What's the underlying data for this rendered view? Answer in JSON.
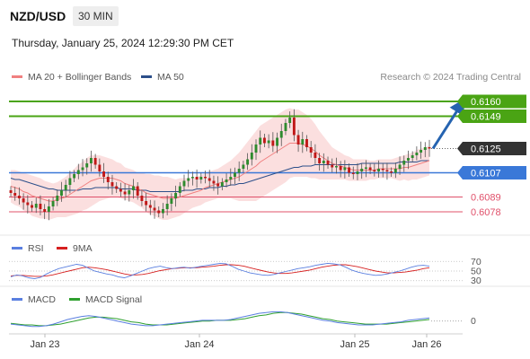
{
  "header": {
    "pair": "NZD/USD",
    "timeframe": "30 MIN",
    "datetime": "Thursday, January 25, 2024 12:29:30 PM CET"
  },
  "legend": {
    "ma20_bb": "MA 20 + Bollinger Bands",
    "ma50": "MA 50",
    "credit": "Research © 2024 Trading Central",
    "rsi": "RSI",
    "ma9": "9MA",
    "macd": "MACD",
    "macd_signal": "MACD Signal"
  },
  "colors": {
    "ma20": "#f08080",
    "ma50": "#2c4f8a",
    "green": "#4aa414",
    "blue": "#3a78d8",
    "red": "#e0506a",
    "current": "#333333",
    "rsi": "#5a7fe0",
    "rsi9": "#d62020",
    "macd": "#5a7fe0",
    "macd_signal": "#2fa02f"
  },
  "chart_data": [
    {
      "type": "candlestick",
      "title": "NZD/USD",
      "ylim": [
        0.6062,
        0.6172
      ],
      "x_labels": [
        "Jan 23",
        "Jan 24",
        "Jan 25",
        "Jan 26"
      ],
      "levels": [
        {
          "label": "0.6160",
          "value": 0.616,
          "style": "resistance"
        },
        {
          "label": "0.6149",
          "value": 0.6149,
          "style": "resistance"
        },
        {
          "label": "0.6125",
          "value": 0.6125,
          "style": "current"
        },
        {
          "label": "0.6107",
          "value": 0.6107,
          "style": "pivot"
        },
        {
          "label": "0.6089",
          "value": 0.6089,
          "style": "support"
        },
        {
          "label": "0.6078",
          "value": 0.6078,
          "style": "support"
        }
      ],
      "closes": [
        0.6092,
        0.609,
        0.6088,
        0.6085,
        0.6083,
        0.6081,
        0.6084,
        0.608,
        0.6078,
        0.6082,
        0.6086,
        0.609,
        0.6094,
        0.6098,
        0.6103,
        0.6106,
        0.6109,
        0.6111,
        0.6114,
        0.6118,
        0.6113,
        0.6108,
        0.6104,
        0.61,
        0.6097,
        0.6095,
        0.6093,
        0.6091,
        0.6094,
        0.6097,
        0.609,
        0.6086,
        0.6083,
        0.6081,
        0.6079,
        0.6077,
        0.608,
        0.6084,
        0.6088,
        0.6092,
        0.6097,
        0.6101,
        0.6103,
        0.6104,
        0.6102,
        0.6104,
        0.6103,
        0.6101,
        0.6099,
        0.6097,
        0.61,
        0.6102,
        0.6104,
        0.6107,
        0.611,
        0.6113,
        0.6117,
        0.6122,
        0.6128,
        0.6133,
        0.6129,
        0.6131,
        0.6127,
        0.6133,
        0.6138,
        0.6144,
        0.6148,
        0.6135,
        0.6128,
        0.6132,
        0.6126,
        0.6122,
        0.6118,
        0.6114,
        0.6116,
        0.6113,
        0.6111,
        0.6112,
        0.6109,
        0.6111,
        0.6107,
        0.6106,
        0.6108,
        0.611,
        0.6111,
        0.6109,
        0.6108,
        0.611,
        0.6109,
        0.6108,
        0.6107,
        0.611,
        0.6113,
        0.6116,
        0.6118,
        0.612,
        0.6122,
        0.6124,
        0.6126,
        0.6125
      ],
      "ma20": [
        0.6097,
        0.6096,
        0.6095,
        0.6093,
        0.6092,
        0.609,
        0.6089,
        0.6088,
        0.6087,
        0.6086,
        0.6086,
        0.6087,
        0.6088,
        0.6089,
        0.6091,
        0.6093,
        0.6095,
        0.6097,
        0.6099,
        0.6101,
        0.6102,
        0.6103,
        0.6103,
        0.6103,
        0.6103,
        0.6102,
        0.6101,
        0.6099,
        0.6098,
        0.6097,
        0.6095,
        0.6094,
        0.6092,
        0.6091,
        0.609,
        0.6089,
        0.6088,
        0.6088,
        0.6088,
        0.6088,
        0.6089,
        0.609,
        0.6091,
        0.6092,
        0.6093,
        0.6094,
        0.6096,
        0.6097,
        0.6098,
        0.6099,
        0.61,
        0.6101,
        0.6102,
        0.6103,
        0.6104,
        0.6106,
        0.6108,
        0.611,
        0.6112,
        0.6115,
        0.6117,
        0.6119,
        0.6121,
        0.6123,
        0.6125,
        0.6127,
        0.6129,
        0.6129,
        0.6129,
        0.6128,
        0.6127,
        0.6125,
        0.6123,
        0.612,
        0.6118,
        0.6116,
        0.6114,
        0.6113,
        0.6112,
        0.6111,
        0.611,
        0.6109,
        0.6109,
        0.6109,
        0.6109,
        0.6109,
        0.6109,
        0.611,
        0.611,
        0.611,
        0.611,
        0.611,
        0.611,
        0.6111,
        0.6111,
        0.6112,
        0.6113,
        0.6114,
        0.6115,
        0.6116
      ],
      "ma50": [
        0.6103,
        0.6102,
        0.6102,
        0.6101,
        0.61,
        0.6099,
        0.6098,
        0.6097,
        0.6096,
        0.6095,
        0.6095,
        0.6094,
        0.6094,
        0.6094,
        0.6094,
        0.6094,
        0.6094,
        0.6095,
        0.6095,
        0.6095,
        0.6096,
        0.6096,
        0.6096,
        0.6096,
        0.6096,
        0.6096,
        0.6095,
        0.6095,
        0.6095,
        0.6095,
        0.6094,
        0.6094,
        0.6094,
        0.6093,
        0.6093,
        0.6093,
        0.6093,
        0.6093,
        0.6093,
        0.6093,
        0.6093,
        0.6094,
        0.6094,
        0.6094,
        0.6095,
        0.6095,
        0.6095,
        0.6096,
        0.6096,
        0.6096,
        0.6097,
        0.6097,
        0.6098,
        0.6098,
        0.6099,
        0.6099,
        0.61,
        0.6101,
        0.6102,
        0.6103,
        0.6104,
        0.6105,
        0.6106,
        0.6107,
        0.6108,
        0.6109,
        0.611,
        0.6111,
        0.6111,
        0.6112,
        0.6112,
        0.6112,
        0.6113,
        0.6113,
        0.6113,
        0.6113,
        0.6113,
        0.6113,
        0.6113,
        0.6113,
        0.6113,
        0.6113,
        0.6113,
        0.6114,
        0.6114,
        0.6114,
        0.6114,
        0.6114,
        0.6114,
        0.6114,
        0.6114,
        0.6114,
        0.6115,
        0.6115,
        0.6115,
        0.6115,
        0.6115,
        0.6116,
        0.6116,
        0.6116
      ],
      "bb_width": [
        0.0012,
        0.0013,
        0.0013,
        0.0014,
        0.0014,
        0.0015,
        0.0015,
        0.0015,
        0.0014,
        0.0014,
        0.0013,
        0.0013,
        0.0014,
        0.0015,
        0.0016,
        0.0017,
        0.0018,
        0.0018,
        0.0019,
        0.0019,
        0.0018,
        0.0017,
        0.0016,
        0.0015,
        0.0014,
        0.0013,
        0.0013,
        0.0012,
        0.0012,
        0.0012,
        0.0012,
        0.0013,
        0.0014,
        0.0015,
        0.0015,
        0.0016,
        0.0016,
        0.0016,
        0.0015,
        0.0014,
        0.0014,
        0.0013,
        0.0012,
        0.0011,
        0.0011,
        0.0011,
        0.0011,
        0.0011,
        0.0011,
        0.0011,
        0.0012,
        0.0013,
        0.0014,
        0.0016,
        0.0018,
        0.002,
        0.0022,
        0.0024,
        0.0026,
        0.0027,
        0.0027,
        0.0027,
        0.0027,
        0.0027,
        0.0027,
        0.0027,
        0.0026,
        0.0025,
        0.0025,
        0.0024,
        0.0023,
        0.0022,
        0.002,
        0.0018,
        0.0016,
        0.0014,
        0.0012,
        0.0011,
        0.001,
        0.0009,
        0.0009,
        0.0008,
        0.0008,
        0.0008,
        0.0008,
        0.0007,
        0.0007,
        0.0007,
        0.0007,
        0.0007,
        0.0007,
        0.0008,
        0.0009,
        0.0009,
        0.001,
        0.001,
        0.0011,
        0.0011,
        0.0011,
        0.0011
      ],
      "projection": {
        "from": 0.6125,
        "to": 0.616
      }
    },
    {
      "type": "line",
      "title": "RSI",
      "ylim": [
        22,
        78
      ],
      "ticks": [
        "70",
        "50",
        "30"
      ],
      "tick_values": [
        70,
        50,
        30
      ],
      "series": [
        {
          "name": "RSI",
          "values": [
            38,
            42,
            40,
            36,
            34,
            37,
            44,
            50,
            55,
            58,
            61,
            64,
            62,
            56,
            50,
            47,
            44,
            42,
            38,
            36,
            40,
            45,
            50,
            55,
            58,
            60,
            57,
            55,
            57,
            58,
            56,
            58,
            60,
            62,
            64,
            66,
            65,
            60,
            54,
            50,
            46,
            44,
            42,
            41,
            43,
            46,
            49,
            52,
            55,
            57,
            59,
            62,
            64,
            66,
            65,
            63,
            58,
            52,
            48,
            45,
            43,
            41,
            42,
            44,
            47,
            50,
            54,
            58,
            61,
            62,
            60
          ]
        },
        {
          "name": "9MA",
          "values": [
            40,
            41,
            41,
            40,
            39,
            39,
            40,
            42,
            45,
            48,
            51,
            54,
            57,
            58,
            57,
            55,
            53,
            50,
            47,
            44,
            42,
            42,
            43,
            45,
            48,
            51,
            53,
            55,
            56,
            57,
            57,
            57,
            58,
            59,
            60,
            62,
            63,
            63,
            62,
            60,
            57,
            54,
            51,
            48,
            46,
            45,
            45,
            46,
            48,
            50,
            52,
            55,
            58,
            60,
            62,
            63,
            63,
            61,
            59,
            56,
            53,
            50,
            48,
            46,
            46,
            47,
            48,
            50,
            52,
            55,
            57
          ]
        }
      ]
    },
    {
      "type": "line",
      "title": "MACD",
      "ylim": [
        -0.0012,
        0.0016
      ],
      "ticks": [
        "0"
      ],
      "tick_values": [
        0
      ],
      "series": [
        {
          "name": "MACD",
          "values": [
            -0.0004,
            -0.0005,
            -0.0006,
            -0.0007,
            -0.0007,
            -0.0006,
            -0.0004,
            -0.0001,
            0.0002,
            0.0004,
            0.0006,
            0.0007,
            0.0006,
            0.0004,
            0.0002,
            0.0,
            -0.0002,
            -0.0004,
            -0.0005,
            -0.0006,
            -0.0006,
            -0.0005,
            -0.0004,
            -0.0003,
            -0.0002,
            -0.0001,
            0.0,
            0.0001,
            0.0001,
            0.0001,
            0.0001,
            0.0002,
            0.0004,
            0.0006,
            0.0008,
            0.001,
            0.0011,
            0.0012,
            0.0012,
            0.0011,
            0.0009,
            0.0007,
            0.0005,
            0.0003,
            0.0001,
            0.0,
            -0.0002,
            -0.0003,
            -0.0004,
            -0.0005,
            -0.0005,
            -0.0005,
            -0.0004,
            -0.0003,
            -0.0002,
            -0.0001,
            0.0001,
            0.0002,
            0.0003,
            0.0004
          ]
        },
        {
          "name": "MACD Signal",
          "values": [
            -0.0003,
            -0.0004,
            -0.0005,
            -0.0005,
            -0.0006,
            -0.0006,
            -0.0005,
            -0.0004,
            -0.0002,
            0.0,
            0.0002,
            0.0004,
            0.0005,
            0.0005,
            0.0004,
            0.0003,
            0.0001,
            -0.0001,
            -0.0002,
            -0.0004,
            -0.0005,
            -0.0005,
            -0.0005,
            -0.0004,
            -0.0003,
            -0.0002,
            -0.0001,
            0.0,
            0.0,
            0.0001,
            0.0001,
            0.0001,
            0.0002,
            0.0003,
            0.0005,
            0.0007,
            0.0008,
            0.001,
            0.0011,
            0.0011,
            0.001,
            0.0009,
            0.0007,
            0.0005,
            0.0003,
            0.0002,
            0.0,
            -0.0001,
            -0.0002,
            -0.0003,
            -0.0004,
            -0.0004,
            -0.0004,
            -0.0004,
            -0.0003,
            -0.0002,
            -0.0001,
            0.0,
            0.0001,
            0.0002
          ]
        }
      ]
    }
  ]
}
